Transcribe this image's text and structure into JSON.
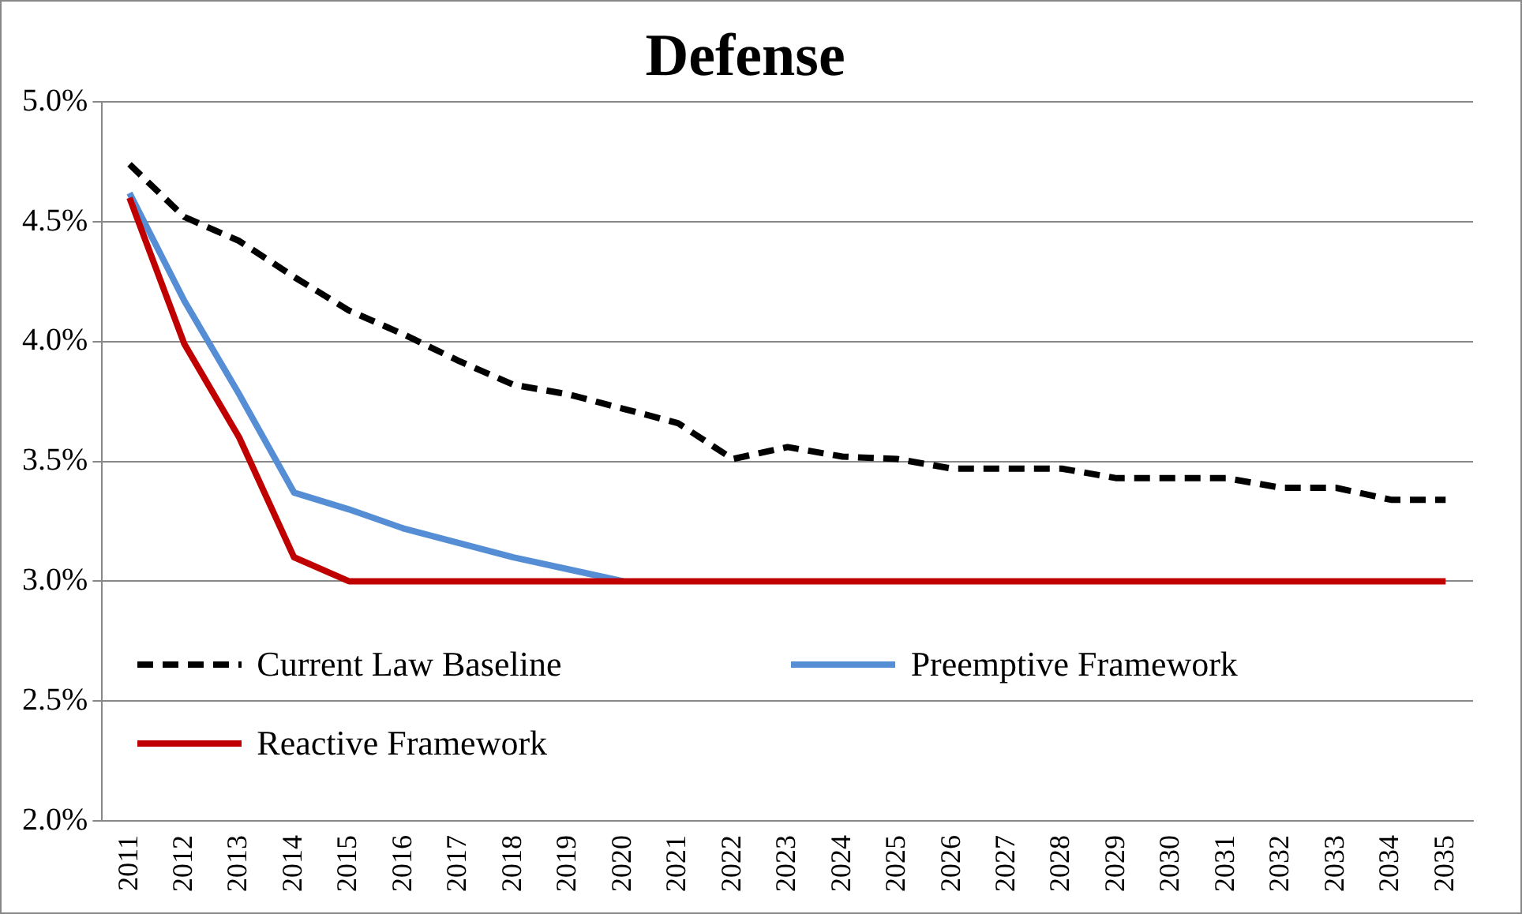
{
  "chart_data": {
    "type": "line",
    "title": "Defense",
    "categories": [
      "2011",
      "2012",
      "2013",
      "2014",
      "2015",
      "2016",
      "2017",
      "2018",
      "2019",
      "2020",
      "2021",
      "2022",
      "2023",
      "2024",
      "2025",
      "2026",
      "2027",
      "2028",
      "2029",
      "2030",
      "2031",
      "2032",
      "2033",
      "2034",
      "2035"
    ],
    "series": [
      {
        "name": "Current Law Baseline",
        "color": "#000000",
        "line_style": "dashed",
        "values": [
          4.74,
          4.52,
          4.42,
          4.27,
          4.13,
          4.03,
          3.92,
          3.82,
          3.78,
          3.72,
          3.66,
          3.51,
          3.56,
          3.52,
          3.51,
          3.47,
          3.47,
          3.47,
          3.43,
          3.43,
          3.43,
          3.39,
          3.39,
          3.34,
          3.34
        ]
      },
      {
        "name": "Preemptive Framework",
        "color": "#558ed5",
        "line_style": "solid",
        "values": [
          4.62,
          4.17,
          3.78,
          3.37,
          3.3,
          3.22,
          3.16,
          3.1,
          3.05,
          3.0,
          null,
          null,
          null,
          null,
          null,
          null,
          null,
          null,
          null,
          null,
          null,
          null,
          null,
          null,
          null
        ]
      },
      {
        "name": "Reactive Framework",
        "color": "#c00000",
        "line_style": "solid",
        "values": [
          4.6,
          3.99,
          3.6,
          3.1,
          3.0,
          3.0,
          3.0,
          3.0,
          3.0,
          3.0,
          3.0,
          3.0,
          3.0,
          3.0,
          3.0,
          3.0,
          3.0,
          3.0,
          3.0,
          3.0,
          3.0,
          3.0,
          3.0,
          3.0,
          3.0
        ]
      }
    ],
    "ylim": [
      2.0,
      5.0
    ],
    "yticks": [
      {
        "value": 2.0,
        "label": "2.0%"
      },
      {
        "value": 2.5,
        "label": "2.5%"
      },
      {
        "value": 3.0,
        "label": "3.0%"
      },
      {
        "value": 3.5,
        "label": "3.5%"
      },
      {
        "value": 4.0,
        "label": "4.0%"
      },
      {
        "value": 4.5,
        "label": "4.5%"
      },
      {
        "value": 5.0,
        "label": "5.0%"
      }
    ],
    "grid": "y",
    "legend": "bottom",
    "marker": "none"
  }
}
